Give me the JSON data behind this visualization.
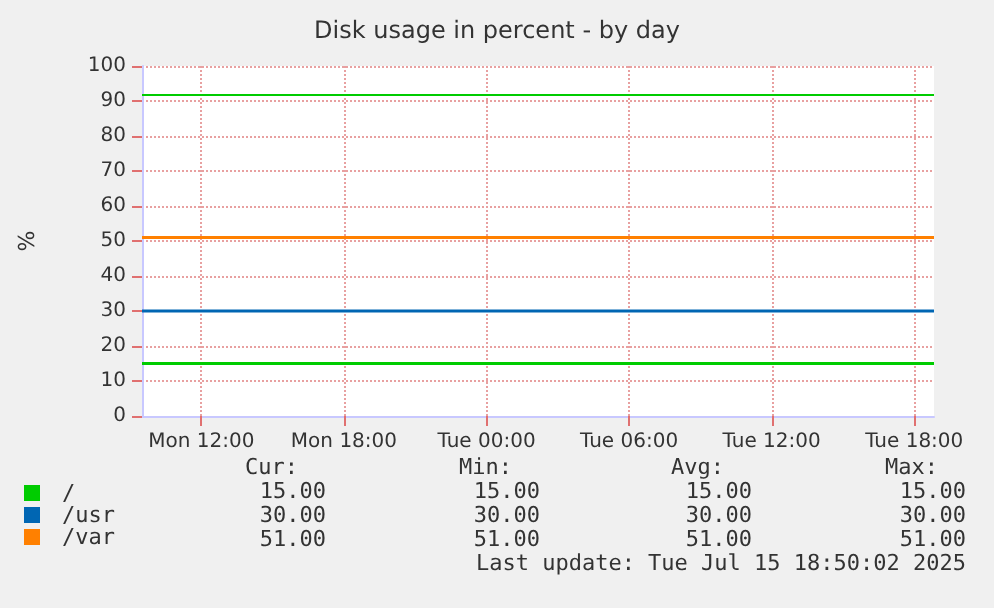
{
  "chart_data": {
    "type": "line",
    "title": "Disk usage in percent - by day",
    "ylabel": "%",
    "xlim": [
      "2025-07-14T09:30",
      "2025-07-15T18:50"
    ],
    "xticks": [
      {
        "value": "2025-07-14T12:00",
        "label": "Mon 12:00"
      },
      {
        "value": "2025-07-14T18:00",
        "label": "Mon 18:00"
      },
      {
        "value": "2025-07-15T00:00",
        "label": "Tue 00:00"
      },
      {
        "value": "2025-07-15T06:00",
        "label": "Tue 06:00"
      },
      {
        "value": "2025-07-15T12:00",
        "label": "Tue 12:00"
      },
      {
        "value": "2025-07-15T18:00",
        "label": "Tue 18:00"
      }
    ],
    "ylim": [
      0,
      100
    ],
    "yticks": [
      0,
      10,
      20,
      30,
      40,
      50,
      60,
      70,
      80,
      90,
      100
    ],
    "series": [
      {
        "name": "/",
        "color": "#00cc00",
        "x": [
          "2025-07-14T09:30",
          "2025-07-15T18:50"
        ],
        "values": [
          15,
          15
        ]
      },
      {
        "name": "/usr",
        "color": "#0066b3",
        "x": [
          "2025-07-14T09:30",
          "2025-07-15T18:50"
        ],
        "values": [
          30,
          30
        ]
      },
      {
        "name": "/var",
        "color": "#ff8000",
        "x": [
          "2025-07-14T09:30",
          "2025-07-15T18:50"
        ],
        "values": [
          51,
          51
        ]
      }
    ],
    "ref_lines": [
      {
        "axis": "y",
        "value": 92,
        "color": "#00cc00"
      }
    ],
    "grid": true,
    "legend": "bottom left",
    "marker": "none",
    "line_style": "solid",
    "annotations": [
      "Cur:",
      "Min:",
      "Avg:",
      "Max:",
      "15.00",
      "15.00",
      "15.00",
      "15.00",
      "30.00",
      "30.00",
      "30.00",
      "30.00",
      "51.00",
      "51.00",
      "51.00",
      "51.00",
      "Last update: Tue Jul 15 18:50:02 2025"
    ]
  }
}
